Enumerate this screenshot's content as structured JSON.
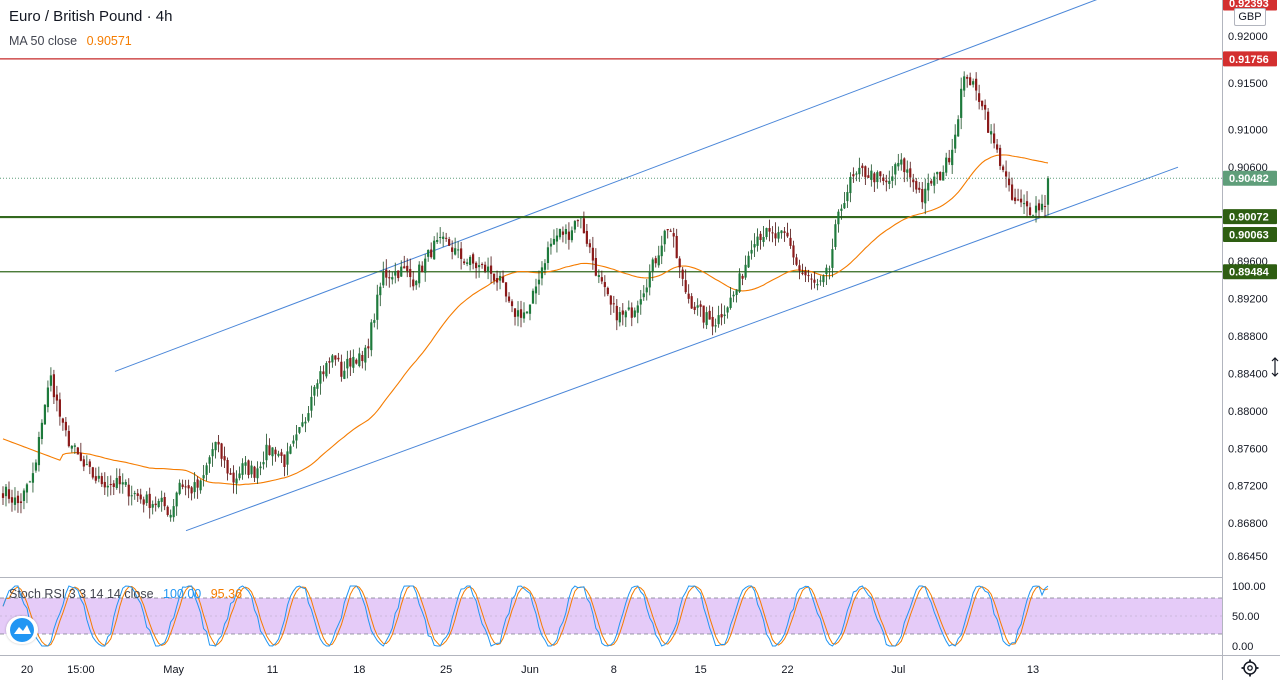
{
  "header": {
    "symbol_title": "Euro / British Pound · 4h",
    "currency_badge": "GBP"
  },
  "ma_legend": {
    "label": "MA 50 close",
    "value": "0.90571",
    "color": "#f57c00"
  },
  "rsi_legend": {
    "label": "Stoch RSI 3 3 14 14 close",
    "k_value": "100.00",
    "d_value": "95.36",
    "k_color": "#2196f3",
    "d_color": "#f57c00"
  },
  "colors": {
    "up": "#26a69a",
    "down": "#ef5350",
    "candle_up": "#1e7a3c",
    "candle_down": "#8b1a1a",
    "channel": "#4a86d8",
    "ma": "#f57c00",
    "resistance": "#c62828",
    "support": "#33691e",
    "rsi_band": "#e1c2f7",
    "current_price": "#5f9e7a"
  },
  "chart_data": [
    {
      "type": "candlestick",
      "title": "Euro / British Pound · 4h",
      "ylim": [
        0.863,
        0.925
      ],
      "y_ticks": [
        "0.92000",
        "0.91500",
        "0.91000",
        "0.90600",
        "0.89600",
        "0.89200",
        "0.88800",
        "0.88400",
        "0.88000",
        "0.87600",
        "0.87200",
        "0.86800",
        "0.86450"
      ],
      "y_tick_values": [
        0.92,
        0.915,
        0.91,
        0.906,
        0.896,
        0.892,
        0.888,
        0.884,
        0.88,
        0.876,
        0.872,
        0.868,
        0.8645
      ],
      "x_ticks": [
        "20",
        "15:00",
        "May",
        "11",
        "18",
        "25",
        "Jun",
        "8",
        "15",
        "22",
        "Jul",
        "13"
      ],
      "x_tick_index": [
        0,
        26,
        57,
        90,
        119,
        148,
        176,
        204,
        233,
        262,
        299,
        344
      ],
      "n_bars": 350,
      "close_path": [
        [
          0,
          0.8715
        ],
        [
          8,
          0.87
        ],
        [
          16,
          0.8735
        ],
        [
          20,
          0.88
        ],
        [
          24,
          0.8835
        ],
        [
          30,
          0.878
        ],
        [
          40,
          0.874
        ],
        [
          48,
          0.8725
        ],
        [
          60,
          0.872
        ],
        [
          70,
          0.8705
        ],
        [
          80,
          0.87
        ],
        [
          84,
          0.869
        ],
        [
          88,
          0.8725
        ],
        [
          93,
          0.8715
        ],
        [
          99,
          0.872
        ],
        [
          104,
          0.8755
        ],
        [
          106,
          0.8765
        ],
        [
          115,
          0.8725
        ],
        [
          120,
          0.874
        ],
        [
          126,
          0.8735
        ],
        [
          131,
          0.8755
        ],
        [
          136,
          0.876
        ],
        [
          141,
          0.8745
        ],
        [
          146,
          0.8765
        ],
        [
          151,
          0.879
        ],
        [
          156,
          0.8835
        ],
        [
          161,
          0.8845
        ],
        [
          166,
          0.886
        ],
        [
          169,
          0.884
        ],
        [
          176,
          0.886
        ],
        [
          180,
          0.885
        ],
        [
          186,
          0.8905
        ],
        [
          190,
          0.8945
        ],
        [
          200,
          0.895
        ],
        [
          205,
          0.894
        ],
        [
          210,
          0.8955
        ],
        [
          215,
          0.8975
        ],
        [
          222,
          0.898
        ],
        [
          228,
          0.8965
        ],
        [
          236,
          0.8955
        ],
        [
          243,
          0.895
        ],
        [
          249,
          0.8935
        ],
        [
          254,
          0.8905
        ],
        [
          263,
          0.8905
        ],
        [
          268,
          0.8945
        ],
        [
          273,
          0.8975
        ],
        [
          278,
          0.899
        ],
        [
          283,
          0.899
        ],
        [
          288,
          0.901
        ],
        [
          293,
          0.8975
        ],
        [
          298,
          0.894
        ],
        [
          304,
          0.891
        ],
        [
          309,
          0.89
        ],
        [
          314,
          0.8905
        ],
        [
          320,
          0.893
        ],
        [
          326,
          0.896
        ],
        [
          330,
          0.8985
        ],
        [
          333,
          0.9
        ],
        [
          340,
          0.8935
        ],
        [
          343,
          0.892
        ],
        [
          350,
          0.89
        ],
        [
          356,
          0.8895
        ],
        [
          361,
          0.891
        ],
        [
          366,
          0.8925
        ],
        [
          371,
          0.8955
        ],
        [
          375,
          0.8985
        ],
        [
          380,
          0.899
        ],
        [
          385,
          0.8985
        ],
        [
          392,
          0.8985
        ],
        [
          398,
          0.895
        ],
        [
          403,
          0.894
        ],
        [
          408,
          0.893
        ],
        [
          413,
          0.895
        ],
        [
          416,
          0.899
        ],
        [
          420,
          0.9025
        ],
        [
          424,
          0.9045
        ],
        [
          430,
          0.9055
        ],
        [
          436,
          0.905
        ],
        [
          442,
          0.904
        ],
        [
          448,
          0.9065
        ],
        [
          452,
          0.9055
        ],
        [
          457,
          0.904
        ],
        [
          460,
          0.9025
        ],
        [
          464,
          0.9045
        ],
        [
          468,
          0.905
        ],
        [
          472,
          0.9065
        ],
        [
          476,
          0.9095
        ],
        [
          479,
          0.914
        ],
        [
          482,
          0.916
        ],
        [
          486,
          0.914
        ],
        [
          490,
          0.913
        ],
        [
          493,
          0.91
        ],
        [
          497,
          0.9075
        ],
        [
          500,
          0.906
        ],
        [
          504,
          0.9025
        ],
        [
          508,
          0.902
        ],
        [
          514,
          0.9015
        ],
        [
          520,
          0.902
        ],
        [
          525,
          0.903
        ],
        [
          527,
          0.9048
        ]
      ],
      "moving_average": {
        "name": "MA 50 close",
        "last": 0.90571
      },
      "horizontal_levels": [
        {
          "value": 0.92393,
          "label": "0.92393",
          "kind": "resistance"
        },
        {
          "value": 0.91756,
          "label": "0.91756",
          "kind": "resistance"
        },
        {
          "value": 0.90482,
          "label": "0.90482",
          "kind": "current"
        },
        {
          "value": 0.90072,
          "label": "0.90072",
          "kind": "support"
        },
        {
          "value": 0.90063,
          "label": "0.90063",
          "kind": "support"
        },
        {
          "value": 0.89484,
          "label": "0.89484",
          "kind": "support"
        }
      ],
      "channel": {
        "upper": [
          [
            0.0,
            0.8842
          ],
          [
            1.0,
            0.9243
          ]
        ],
        "lower": [
          [
            0.0,
            0.8672
          ],
          [
            1.0,
            0.906
          ]
        ]
      }
    },
    {
      "type": "line",
      "title": "Stoch RSI 3 3 14 14 close",
      "ylim": [
        0,
        100
      ],
      "y_ticks": [
        "100.00",
        "50.00",
        "0.00"
      ],
      "y_tick_values": [
        100,
        50,
        0
      ],
      "band": [
        20,
        80
      ],
      "series": [
        {
          "name": "K",
          "last": 100.0
        },
        {
          "name": "D",
          "last": 95.36
        }
      ]
    }
  ]
}
